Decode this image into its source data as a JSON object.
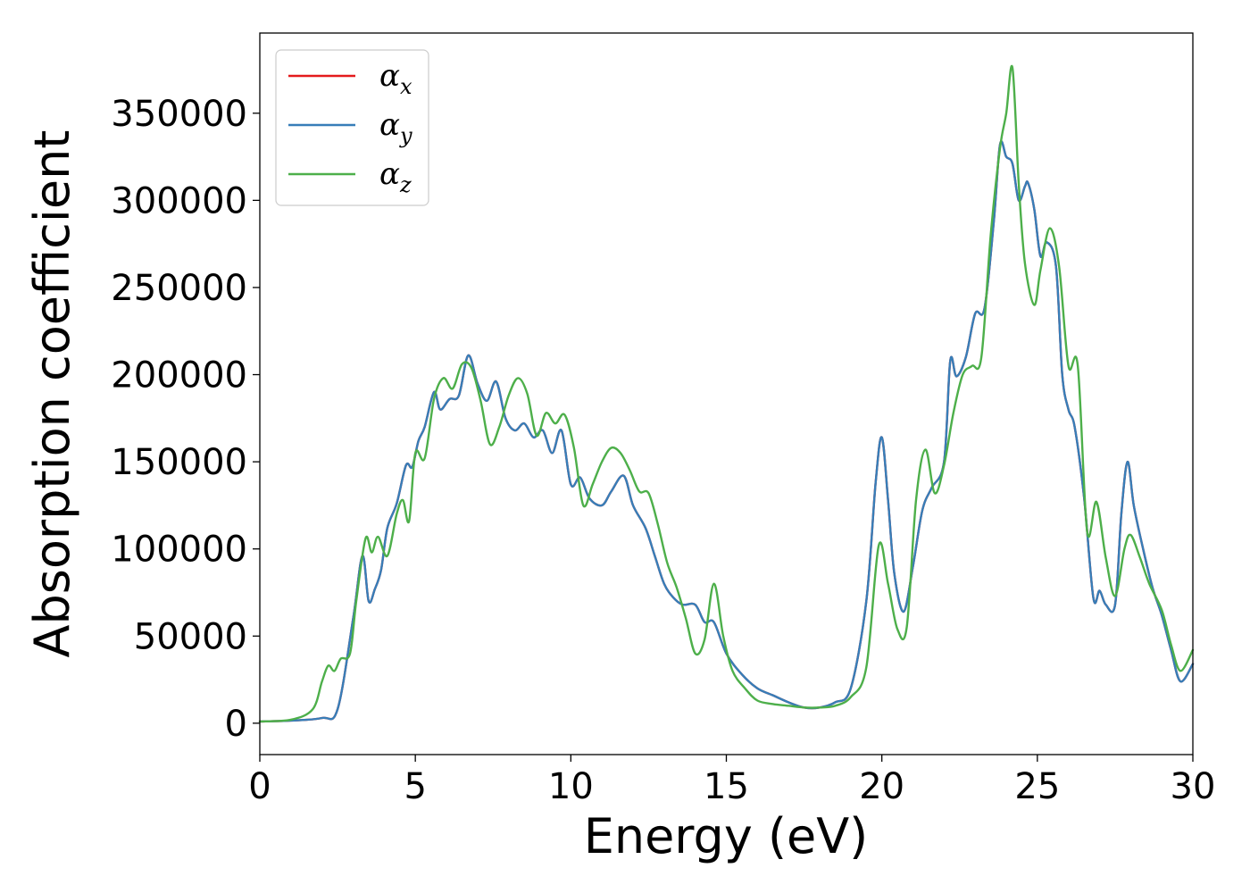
{
  "chart_data": {
    "type": "line",
    "title": "",
    "xlabel": "Energy (eV)",
    "ylabel": "Absorption coefficient",
    "xlim": [
      0,
      30
    ],
    "ylim": [
      -18000,
      396000
    ],
    "xticks": [
      0,
      5,
      10,
      15,
      20,
      25,
      30
    ],
    "yticks": [
      0,
      50000,
      100000,
      150000,
      200000,
      250000,
      300000,
      350000
    ],
    "grid": false,
    "legend_position": "top-left",
    "series": [
      {
        "name": "αx",
        "symbol": "α",
        "subscript": "x",
        "color": "#e41a1c",
        "x": [
          0,
          1,
          2,
          2.5,
          3,
          3.3,
          3.5,
          3.7,
          3.9,
          4.1,
          4.4,
          4.7,
          4.9,
          5.1,
          5.3,
          5.6,
          5.8,
          6.1,
          6.4,
          6.7,
          7,
          7.3,
          7.6,
          7.9,
          8.2,
          8.5,
          8.8,
          9.1,
          9.4,
          9.7,
          10,
          10.3,
          10.6,
          11,
          11.3,
          11.7,
          12,
          12.4,
          12.7,
          13,
          13.3,
          13.6,
          14,
          14.3,
          14.6,
          15,
          15.5,
          16,
          16.5,
          17,
          17.5,
          18,
          18.5,
          19,
          19.5,
          19.8,
          20,
          20.2,
          20.4,
          20.7,
          21,
          21.3,
          21.6,
          22,
          22.2,
          22.4,
          22.7,
          23,
          23.3,
          23.6,
          23.8,
          24,
          24.2,
          24.4,
          24.6,
          24.7,
          24.9,
          25.1,
          25.3,
          25.6,
          25.8,
          26,
          26.2,
          26.5,
          26.8,
          27,
          27.2,
          27.5,
          27.7,
          27.9,
          28.1,
          28.4,
          28.7,
          29,
          29.3,
          29.6,
          30
        ],
        "values": [
          1000,
          1500,
          3000,
          8000,
          60000,
          96000,
          70000,
          77000,
          88000,
          112000,
          126000,
          148000,
          147000,
          162000,
          170000,
          190000,
          180000,
          186000,
          188000,
          211000,
          195000,
          185000,
          196000,
          175000,
          168000,
          172000,
          164000,
          168000,
          155000,
          168000,
          137000,
          141000,
          129000,
          125000,
          133000,
          142000,
          125000,
          112000,
          96000,
          80000,
          72000,
          68000,
          68000,
          58000,
          58000,
          40000,
          28000,
          20000,
          16000,
          12000,
          9000,
          9000,
          12000,
          20000,
          70000,
          138000,
          164000,
          128000,
          86000,
          64000,
          90000,
          122000,
          135000,
          150000,
          208000,
          199000,
          210000,
          235000,
          238000,
          288000,
          332000,
          325000,
          321000,
          300000,
          308000,
          310000,
          295000,
          268000,
          276000,
          262000,
          200000,
          180000,
          170000,
          130000,
          72000,
          76000,
          68000,
          68000,
          120000,
          150000,
          125000,
          100000,
          78000,
          62000,
          42000,
          24000,
          34000
        ]
      },
      {
        "name": "αy",
        "symbol": "α",
        "subscript": "y",
        "color": "#377eb8",
        "x": [
          0,
          1,
          2,
          2.5,
          3,
          3.3,
          3.5,
          3.7,
          3.9,
          4.1,
          4.4,
          4.7,
          4.9,
          5.1,
          5.3,
          5.6,
          5.8,
          6.1,
          6.4,
          6.7,
          7,
          7.3,
          7.6,
          7.9,
          8.2,
          8.5,
          8.8,
          9.1,
          9.4,
          9.7,
          10,
          10.3,
          10.6,
          11,
          11.3,
          11.7,
          12,
          12.4,
          12.7,
          13,
          13.3,
          13.6,
          14,
          14.3,
          14.6,
          15,
          15.5,
          16,
          16.5,
          17,
          17.5,
          18,
          18.5,
          19,
          19.5,
          19.8,
          20,
          20.2,
          20.4,
          20.7,
          21,
          21.3,
          21.6,
          22,
          22.2,
          22.4,
          22.7,
          23,
          23.3,
          23.6,
          23.8,
          24,
          24.2,
          24.4,
          24.6,
          24.7,
          24.9,
          25.1,
          25.3,
          25.6,
          25.8,
          26,
          26.2,
          26.5,
          26.8,
          27,
          27.2,
          27.5,
          27.7,
          27.9,
          28.1,
          28.4,
          28.7,
          29,
          29.3,
          29.6,
          30
        ],
        "values": [
          1000,
          1500,
          3000,
          8000,
          60000,
          96000,
          70000,
          77000,
          88000,
          112000,
          126000,
          148000,
          147000,
          162000,
          170000,
          190000,
          180000,
          186000,
          188000,
          211000,
          195000,
          185000,
          196000,
          175000,
          168000,
          172000,
          164000,
          168000,
          155000,
          168000,
          137000,
          141000,
          129000,
          125000,
          133000,
          142000,
          125000,
          112000,
          96000,
          80000,
          72000,
          68000,
          68000,
          58000,
          58000,
          40000,
          28000,
          20000,
          16000,
          12000,
          9000,
          9000,
          12000,
          20000,
          70000,
          138000,
          164000,
          128000,
          86000,
          64000,
          90000,
          122000,
          135000,
          150000,
          208000,
          199000,
          210000,
          235000,
          238000,
          288000,
          332000,
          325000,
          321000,
          300000,
          308000,
          310000,
          295000,
          268000,
          276000,
          262000,
          200000,
          180000,
          170000,
          130000,
          72000,
          76000,
          68000,
          68000,
          120000,
          150000,
          125000,
          100000,
          78000,
          62000,
          42000,
          24000,
          34000
        ]
      },
      {
        "name": "αz",
        "symbol": "α",
        "subscript": "z",
        "color": "#4daf4a",
        "x": [
          0,
          1,
          1.7,
          2,
          2.2,
          2.4,
          2.6,
          2.9,
          3.1,
          3.4,
          3.6,
          3.8,
          4.1,
          4.4,
          4.6,
          4.8,
          5,
          5.3,
          5.6,
          5.9,
          6.2,
          6.5,
          6.8,
          7.1,
          7.4,
          7.7,
          8,
          8.3,
          8.6,
          8.9,
          9.2,
          9.5,
          9.8,
          10.1,
          10.4,
          10.7,
          11,
          11.3,
          11.6,
          11.9,
          12.2,
          12.5,
          12.8,
          13.1,
          13.4,
          13.7,
          14,
          14.3,
          14.6,
          14.9,
          15.2,
          15.6,
          16,
          16.5,
          17,
          17.5,
          18,
          18.5,
          19,
          19.5,
          19.9,
          20.2,
          20.5,
          20.8,
          21.1,
          21.4,
          21.7,
          22,
          22.3,
          22.6,
          22.9,
          23.2,
          23.5,
          23.8,
          24,
          24.2,
          24.4,
          24.6,
          24.9,
          25.1,
          25.4,
          25.7,
          26,
          26.3,
          26.6,
          26.9,
          27.2,
          27.5,
          27.8,
          28,
          28.3,
          28.6,
          29,
          29.3,
          29.6,
          30
        ],
        "values": [
          1000,
          2000,
          8000,
          24000,
          33000,
          30000,
          37000,
          40000,
          70000,
          106000,
          98000,
          107000,
          96000,
          120000,
          128000,
          116000,
          155000,
          152000,
          186000,
          198000,
          192000,
          206000,
          204000,
          185000,
          160000,
          170000,
          188000,
          198000,
          189000,
          165000,
          178000,
          172000,
          177000,
          158000,
          125000,
          137000,
          150000,
          158000,
          155000,
          145000,
          133000,
          132000,
          114000,
          92000,
          78000,
          60000,
          40000,
          48000,
          80000,
          50000,
          30000,
          20000,
          13000,
          11000,
          10000,
          9000,
          9000,
          10000,
          15000,
          32000,
          102000,
          80000,
          54000,
          55000,
          128000,
          157000,
          132000,
          148000,
          178000,
          200000,
          205000,
          210000,
          280000,
          330000,
          350000,
          376000,
          310000,
          264000,
          240000,
          260000,
          284000,
          262000,
          205000,
          205000,
          110000,
          127000,
          95000,
          73000,
          100000,
          108000,
          95000,
          80000,
          65000,
          45000,
          30000,
          42000
        ]
      }
    ]
  }
}
